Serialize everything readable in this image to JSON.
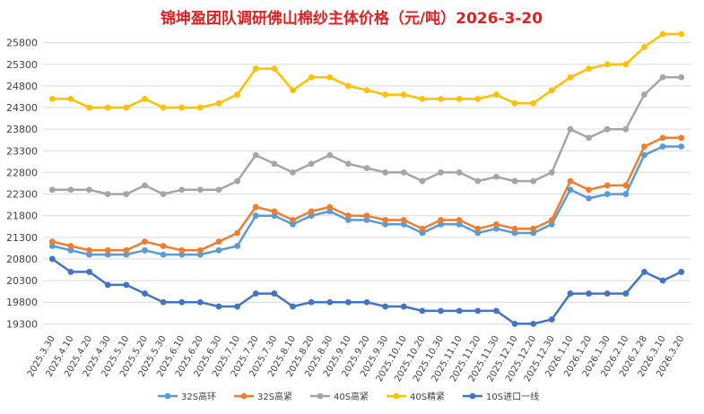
{
  "chart_data": {
    "type": "line",
    "title": "锦坤盈团队调研佛山棉纱主体价格（元/吨）2026-3-20",
    "xlabel": "",
    "ylabel": "",
    "ylim": [
      19100,
      26000
    ],
    "yticks": [
      19300,
      19800,
      20300,
      20800,
      21300,
      21800,
      22300,
      22800,
      23300,
      23800,
      24300,
      24800,
      25300,
      25800
    ],
    "categories": [
      "2025.3.30",
      "2025.4.10",
      "2025.4.20",
      "2025.4.30",
      "2025.5.10",
      "2025.5.20",
      "2025.5.30",
      "2025.6.10",
      "2025.6.20",
      "2025.6.30",
      "2025.7.10",
      "2025.7.20",
      "2025.7.30",
      "2025.8.10",
      "2025.8.20",
      "2025.8.30",
      "2025.9.10",
      "2025.9.20",
      "2025.9.30",
      "2025.10.10",
      "2025.10.20",
      "2025.10.30",
      "2025.11.10",
      "2025.11.20",
      "2025.11.30",
      "2025.12.10",
      "2025.12.20",
      "2025.12.30",
      "2026.1.10",
      "2026.1.20",
      "2026.1.30",
      "2026.2.10",
      "2026.2.28",
      "2026.3.10",
      "2026.3.20"
    ],
    "series": [
      {
        "name": "32S高环",
        "color": "#5b9bd5",
        "values": [
          21100,
          21000,
          20900,
          20900,
          20900,
          21000,
          20900,
          20900,
          20900,
          21000,
          21100,
          21800,
          21800,
          21600,
          21800,
          21900,
          21700,
          21700,
          21600,
          21600,
          21400,
          21600,
          21600,
          21400,
          21500,
          21400,
          21400,
          21600,
          22400,
          22200,
          22300,
          22300,
          23200,
          23400,
          23400
        ]
      },
      {
        "name": "32S高紧",
        "color": "#ed7d31",
        "values": [
          21200,
          21100,
          21000,
          21000,
          21000,
          21200,
          21100,
          21000,
          21000,
          21200,
          21400,
          22000,
          21900,
          21700,
          21900,
          22000,
          21800,
          21800,
          21700,
          21700,
          21500,
          21700,
          21700,
          21500,
          21600,
          21500,
          21500,
          21700,
          22600,
          22400,
          22500,
          22500,
          23400,
          23600,
          23600
        ]
      },
      {
        "name": "40S高紧",
        "color": "#a5a5a5",
        "values": [
          22400,
          22400,
          22400,
          22300,
          22300,
          22500,
          22300,
          22400,
          22400,
          22400,
          22600,
          23200,
          23000,
          22800,
          23000,
          23200,
          23000,
          22900,
          22800,
          22800,
          22600,
          22800,
          22800,
          22600,
          22700,
          22600,
          22600,
          22800,
          23800,
          23600,
          23800,
          23800,
          24600,
          25000,
          25000
        ]
      },
      {
        "name": "40S精紧",
        "color": "#ffc000",
        "values": [
          24500,
          24500,
          24300,
          24300,
          24300,
          24500,
          24300,
          24300,
          24300,
          24400,
          24600,
          25200,
          25200,
          24700,
          25000,
          25000,
          24800,
          24700,
          24600,
          24600,
          24500,
          24500,
          24500,
          24500,
          24600,
          24400,
          24400,
          24700,
          25000,
          25200,
          25300,
          25300,
          25700,
          26000,
          26000
        ]
      },
      {
        "name": "10S进口一线",
        "color": "#4472c4",
        "values": [
          20800,
          20500,
          20500,
          20200,
          20200,
          20000,
          19800,
          19800,
          19800,
          19700,
          19700,
          20000,
          20000,
          19700,
          19800,
          19800,
          19800,
          19800,
          19700,
          19700,
          19600,
          19600,
          19600,
          19600,
          19600,
          19300,
          19300,
          19400,
          20000,
          20000,
          20000,
          20000,
          20500,
          20300,
          20500
        ]
      }
    ],
    "legend_position": "bottom",
    "grid": true
  }
}
